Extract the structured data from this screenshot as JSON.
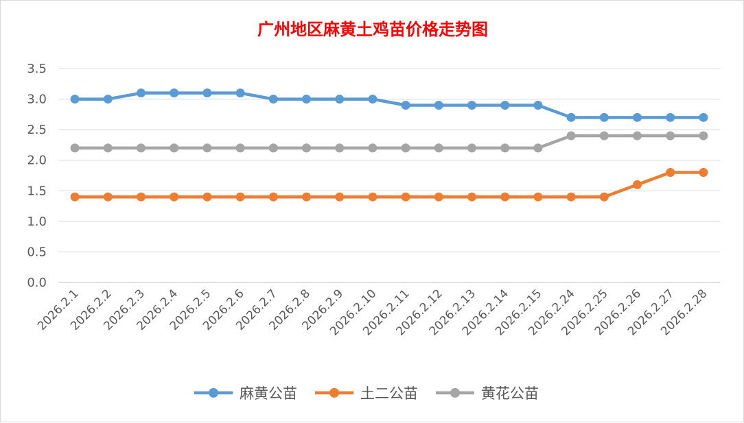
{
  "chart_data": {
    "type": "line",
    "title": "广州地区麻黄土鸡苗价格走势图",
    "title_color": "#ff0000",
    "categories": [
      "2026.2.1",
      "2026.2.2",
      "2026.2.3",
      "2026.2.4",
      "2026.2.5",
      "2026.2.6",
      "2026.2.7",
      "2026.2.8",
      "2026.2.9",
      "2026.2.10",
      "2026.2.11",
      "2026.2.12",
      "2026.2.13",
      "2026.2.14",
      "2026.2.15",
      "2026.2.24",
      "2026.2.25",
      "2026.2.26",
      "2026.2.27",
      "2026.2.28"
    ],
    "series": [
      {
        "name": "麻黄公苗",
        "color": "#5b9bd5",
        "values": [
          3.0,
          3.0,
          3.1,
          3.1,
          3.1,
          3.1,
          3.0,
          3.0,
          3.0,
          3.0,
          2.9,
          2.9,
          2.9,
          2.9,
          2.9,
          2.7,
          2.7,
          2.7,
          2.7,
          2.7
        ]
      },
      {
        "name": "土二公苗",
        "color": "#ed7d31",
        "values": [
          1.4,
          1.4,
          1.4,
          1.4,
          1.4,
          1.4,
          1.4,
          1.4,
          1.4,
          1.4,
          1.4,
          1.4,
          1.4,
          1.4,
          1.4,
          1.4,
          1.4,
          1.6,
          1.8,
          1.8
        ]
      },
      {
        "name": "黄花公苗",
        "color": "#a5a5a5",
        "values": [
          2.2,
          2.2,
          2.2,
          2.2,
          2.2,
          2.2,
          2.2,
          2.2,
          2.2,
          2.2,
          2.2,
          2.2,
          2.2,
          2.2,
          2.2,
          2.4,
          2.4,
          2.4,
          2.4,
          2.4
        ]
      }
    ],
    "ylim": [
      0,
      3.5
    ],
    "y_ticks": [
      "0.0",
      "0.5",
      "1.0",
      "1.5",
      "2.0",
      "2.5",
      "3.0",
      "3.5"
    ],
    "grid": true,
    "legend_position": "bottom"
  }
}
